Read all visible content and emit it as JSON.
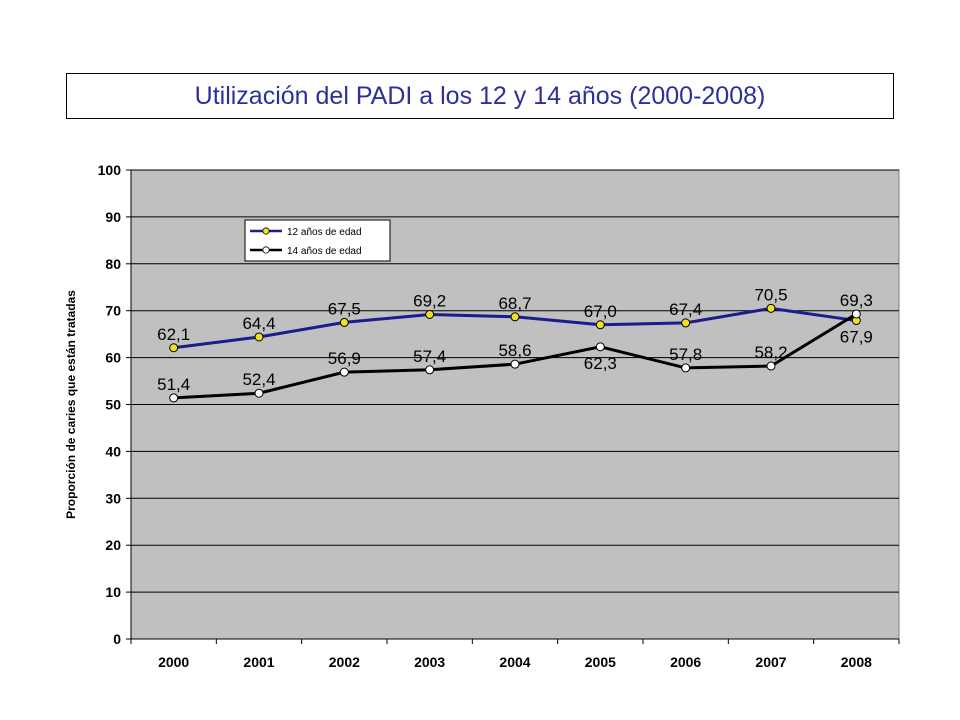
{
  "chart_data": {
    "type": "line",
    "title": "Utilización del PADI a los 12 y 14 años (2000-2008)",
    "xlabel": "",
    "ylabel": "Proporción de caries que están tratadas",
    "ylim": [
      0,
      100
    ],
    "yticks": [
      0,
      10,
      20,
      30,
      40,
      50,
      60,
      70,
      80,
      90,
      100
    ],
    "categories": [
      "2000",
      "2001",
      "2002",
      "2003",
      "2004",
      "2005",
      "2006",
      "2007",
      "2008"
    ],
    "grid": true,
    "legend_position": "top-left",
    "series": [
      {
        "name": "12 años de edad",
        "values": [
          62.1,
          64.4,
          67.5,
          69.2,
          68.7,
          67.0,
          67.4,
          70.5,
          67.9
        ],
        "labels": [
          "62,1",
          "64,4",
          "67,5",
          "69,2",
          "68,7",
          "67,0",
          "67,4",
          "70,5",
          "67,9"
        ],
        "line_color": "#1c1c8c",
        "marker_color": "#f0e020"
      },
      {
        "name": "14 años de edad",
        "values": [
          51.4,
          52.4,
          56.9,
          57.4,
          58.6,
          62.3,
          57.8,
          58.2,
          69.3
        ],
        "labels": [
          "51,4",
          "52,4",
          "56,9",
          "57,4",
          "58,6",
          "62,3",
          "57,8",
          "58,2",
          "69,3"
        ],
        "line_color": "#000000",
        "marker_color": "#ffffff"
      }
    ],
    "plot_background": "#c0c0c0"
  }
}
